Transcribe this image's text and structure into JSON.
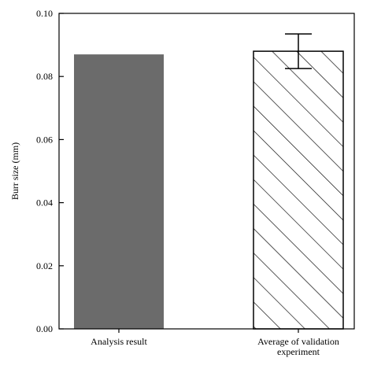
{
  "chart_data": {
    "type": "bar",
    "title": "",
    "xlabel": "",
    "ylabel": "Burr size (mm)",
    "ylim": [
      0,
      0.1
    ],
    "yticks": [
      "0.00",
      "0.02",
      "0.04",
      "0.06",
      "0.08",
      "0.10"
    ],
    "grid": false,
    "categories": [
      [
        "Analysis result"
      ],
      [
        "Average of validation",
        "experiment"
      ]
    ],
    "values": [
      0.087,
      0.088
    ],
    "error": [
      null,
      0.0055
    ],
    "fills": [
      "solid",
      "hatched"
    ],
    "colors": {
      "solid_bar": "#6b6b6b",
      "hatched_bar": "#ffffff",
      "hatch_line": "#000000",
      "axis": "#000000"
    }
  }
}
